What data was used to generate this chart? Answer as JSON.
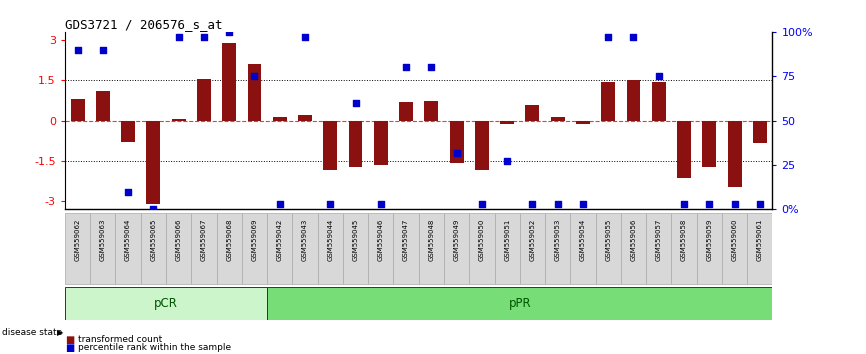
{
  "title": "GDS3721 / 206576_s_at",
  "samples": [
    "GSM559062",
    "GSM559063",
    "GSM559064",
    "GSM559065",
    "GSM559066",
    "GSM559067",
    "GSM559068",
    "GSM559069",
    "GSM559042",
    "GSM559043",
    "GSM559044",
    "GSM559045",
    "GSM559046",
    "GSM559047",
    "GSM559048",
    "GSM559049",
    "GSM559050",
    "GSM559051",
    "GSM559052",
    "GSM559053",
    "GSM559054",
    "GSM559055",
    "GSM559056",
    "GSM559057",
    "GSM559058",
    "GSM559059",
    "GSM559060",
    "GSM559061"
  ],
  "transformed_count": [
    0.8,
    1.1,
    -0.8,
    -3.1,
    0.05,
    1.55,
    2.9,
    2.1,
    0.12,
    0.22,
    -1.85,
    -1.72,
    -1.65,
    0.68,
    0.72,
    -1.58,
    -1.82,
    -0.12,
    0.58,
    0.14,
    -0.12,
    1.42,
    1.52,
    1.45,
    -2.12,
    -1.72,
    -2.48,
    -0.85
  ],
  "percentile_rank": [
    90,
    90,
    10,
    0,
    97,
    97,
    100,
    75,
    3,
    97,
    3,
    60,
    3,
    80,
    80,
    32,
    3,
    27,
    3,
    3,
    3,
    97,
    97,
    75,
    3,
    3,
    3,
    3
  ],
  "group_labels": [
    "pCR",
    "pPR"
  ],
  "group_ranges_idx": [
    [
      0,
      8
    ],
    [
      8,
      28
    ]
  ],
  "bar_color": "#8b1010",
  "dot_color": "#0000cc",
  "ylim": [
    -3.3,
    3.3
  ],
  "yticks_left": [
    -3,
    -1.5,
    0,
    1.5,
    3
  ],
  "ytick_labels_left": [
    "-3",
    "-1.5",
    "0",
    "1.5",
    "3"
  ],
  "right_yticks_pct": [
    0,
    25,
    50,
    75,
    100
  ],
  "right_yticklabels": [
    "0%",
    "25",
    "50",
    "75",
    "100%"
  ],
  "dotted_lines": [
    -1.5,
    1.5
  ],
  "background_color": "#ffffff",
  "group_color_pcr": "#ccf5cc",
  "group_color_ppr": "#77dd77",
  "tick_bg_color": "#d8d8d8",
  "tick_border_color": "#aaaaaa"
}
